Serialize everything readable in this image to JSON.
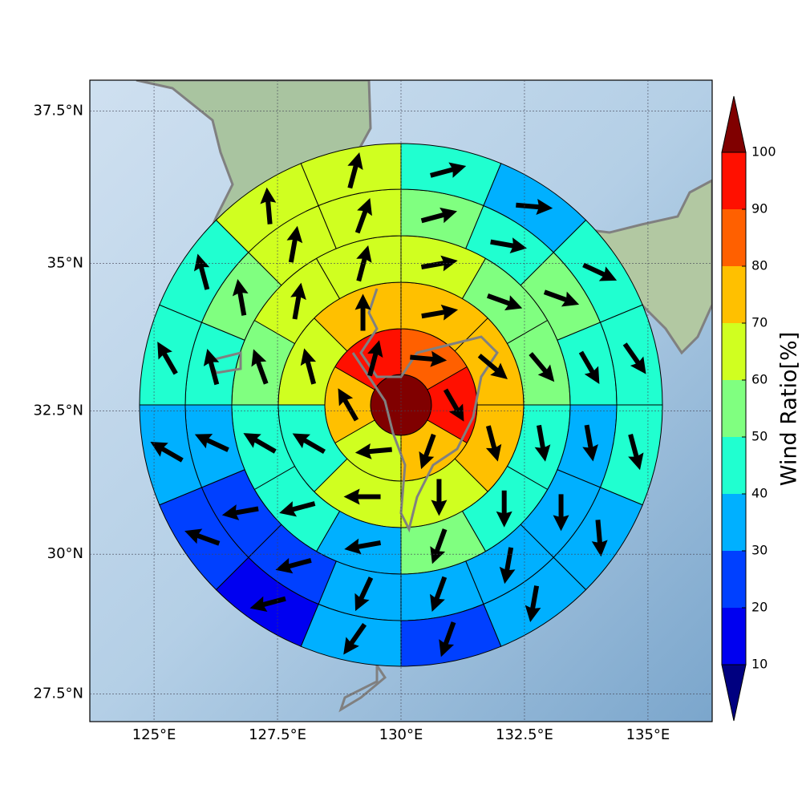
{
  "chart_data": {
    "type": "polar_wind_map",
    "xlim": [
      123.7,
      136.3
    ],
    "ylim": [
      27,
      38
    ],
    "xticks": [
      {
        "value": 125,
        "label": "125°E"
      },
      {
        "value": 127.5,
        "label": "127.5°E"
      },
      {
        "value": 130,
        "label": "130°E"
      },
      {
        "value": 132.5,
        "label": "132.5°E"
      },
      {
        "value": 135,
        "label": "135°E"
      }
    ],
    "yticks": [
      {
        "value": 27.5,
        "label": "27.5°N"
      },
      {
        "value": 30,
        "label": "30°N"
      },
      {
        "value": 32.5,
        "label": "32.5°N"
      },
      {
        "value": 35,
        "label": "35°N"
      },
      {
        "value": 37.5,
        "label": "37.5°N"
      }
    ],
    "grid": true,
    "rings": [
      {
        "values": [
          105
        ]
      },
      {
        "values": [
          85,
          92,
          75,
          65,
          75,
          92
        ],
        "directions": [
          95,
          150,
          200,
          265,
          330,
          15
        ]
      },
      {
        "values": [
          75,
          72,
          72,
          65,
          65,
          45,
          65,
          75
        ],
        "directions": [
          80,
          130,
          165,
          180,
          270,
          300,
          345,
          0
        ]
      },
      {
        "values": [
          65,
          55,
          55,
          45,
          45,
          55,
          35,
          45,
          45,
          55,
          65,
          65
        ],
        "directions": [
          80,
          110,
          140,
          170,
          180,
          200,
          260,
          255,
          300,
          340,
          10,
          15
        ]
      },
      {
        "values": [
          55,
          45,
          55,
          45,
          35,
          35,
          35,
          35,
          35,
          25,
          25,
          35,
          45,
          55,
          65,
          65
        ],
        "directions": [
          75,
          100,
          110,
          150,
          170,
          180,
          190,
          200,
          205,
          255,
          260,
          295,
          345,
          350,
          10,
          20
        ]
      },
      {
        "values": [
          45,
          35,
          45,
          45,
          45,
          35,
          35,
          25,
          35,
          15,
          25,
          35,
          45,
          45,
          65,
          65
        ],
        "directions": [
          75,
          95,
          115,
          145,
          165,
          175,
          190,
          200,
          215,
          255,
          290,
          300,
          330,
          345,
          355,
          15
        ]
      }
    ],
    "colorbar": {
      "label": "Wind Ratio[%]",
      "ticks": [
        10,
        20,
        30,
        40,
        50,
        60,
        70,
        80,
        90,
        100
      ],
      "colors": [
        "#0000f0",
        "#0040ff",
        "#00b0ff",
        "#20ffd0",
        "#80ff80",
        "#d0ff20",
        "#ffc000",
        "#ff6000",
        "#ff1000"
      ],
      "under": "#000080",
      "over": "#800000"
    }
  }
}
